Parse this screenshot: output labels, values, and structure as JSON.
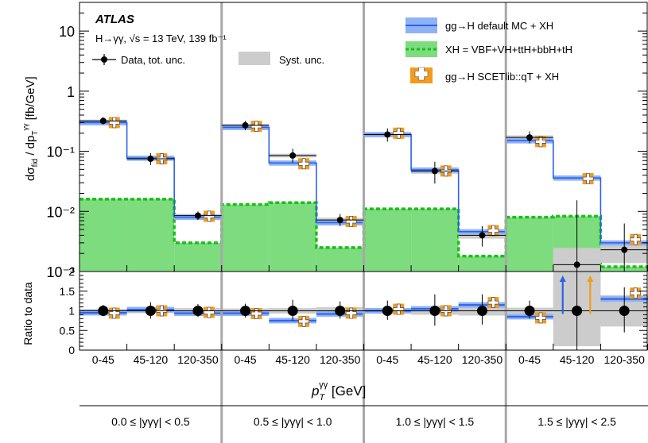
{
  "chart_data": {
    "type": "line",
    "title": "ATLAS",
    "subtitle": "H→γγ, √s = 13 TeV, 139 fb⁻¹",
    "ylabel_main": "dσ_fid / dp_T^γγ [fb/GeV]",
    "ylabel_ratio": "Ratio to data",
    "xlabel": "p_T^γγ [GeV]",
    "yscale_main": "log",
    "ylim_main": [
      0.001,
      30
    ],
    "ylim_ratio": [
      0,
      2
    ],
    "main_yticks": [
      {
        "v": 0.001,
        "t": "10⁻³"
      },
      {
        "v": 0.01,
        "t": "10⁻²"
      },
      {
        "v": 0.1,
        "t": "10⁻¹"
      },
      {
        "v": 1,
        "t": "1"
      },
      {
        "v": 10,
        "t": "10"
      }
    ],
    "ratio_yticks": [
      {
        "v": 0,
        "t": "0"
      },
      {
        "v": 0.5,
        "t": "0.5"
      },
      {
        "v": 1,
        "t": "1"
      },
      {
        "v": 1.5,
        "t": "1.5"
      },
      {
        "v": 2,
        "t": "2"
      }
    ],
    "categories": [
      "0-45",
      "45-120",
      "120-350",
      "0-45",
      "45-120",
      "120-350",
      "0-45",
      "45-120",
      "120-350",
      "0-45",
      "45-120",
      "120-350"
    ],
    "regions": [
      "0.0 ≤ |yγγ| < 0.5",
      "0.5 ≤ |yγγ| < 1.0",
      "1.0 ≤ |yγγ| < 1.5",
      "1.5 ≤ |yγγ| < 2.5"
    ],
    "legend": {
      "data": "Data, tot. unc.",
      "syst": "Syst. unc.",
      "default_mc": "gg→H default MC + XH",
      "xh": "XH = VBF+VH+ttH+bbH+tH",
      "scetlib": "gg→H SCETlib::qT + XH"
    },
    "colors": {
      "default_mc": "#2a62e8",
      "default_band": "#8fb2f5",
      "xh_fill": "#7ddc7d",
      "xh_line": "#19c019",
      "scetlib": "#f59a1c",
      "syst": "#cccccc",
      "separator": "#a8a8a8"
    },
    "series": [
      {
        "name": "Data, tot. unc.",
        "values": [
          0.32,
          0.075,
          0.0085,
          0.27,
          0.085,
          0.0072,
          0.19,
          0.047,
          0.004,
          0.17,
          0.0013,
          0.0023
        ],
        "err_low": [
          0.04,
          0.016,
          0.0013,
          0.045,
          0.02,
          0.0015,
          0.045,
          0.018,
          0.0014,
          0.035,
          0.0012,
          0.0013
        ],
        "err_high": [
          0.05,
          0.018,
          0.0015,
          0.05,
          0.025,
          0.0018,
          0.05,
          0.02,
          0.0017,
          0.045,
          0.014,
          0.004
        ]
      },
      {
        "name": "gg→H default MC + XH",
        "values": [
          0.3,
          0.077,
          0.008,
          0.25,
          0.064,
          0.0065,
          0.19,
          0.049,
          0.0046,
          0.15,
          0.036,
          0.003
        ]
      },
      {
        "name": "XH = VBF+VH+ttH+bbH+tH",
        "values": [
          0.016,
          0.016,
          0.003,
          0.013,
          0.014,
          0.0025,
          0.011,
          0.011,
          0.0018,
          0.008,
          0.0083,
          0.0012
        ]
      },
      {
        "name": "gg→H SCETlib::qT + XH",
        "values": [
          0.3,
          0.075,
          0.0083,
          0.26,
          0.062,
          0.0068,
          0.2,
          0.047,
          0.0048,
          0.145,
          0.035,
          0.0034
        ]
      }
    ],
    "ratio": {
      "data_err_low": [
        0.13,
        0.2,
        0.16,
        0.17,
        0.25,
        0.2,
        0.23,
        0.38,
        0.35,
        0.2,
        1.0,
        0.55
      ],
      "data_err_high": [
        0.15,
        0.22,
        0.17,
        0.18,
        0.28,
        0.24,
        0.26,
        0.42,
        0.42,
        0.26,
        1.0,
        0.6
      ],
      "syst": [
        0.05,
        0.06,
        0.07,
        0.06,
        0.07,
        0.09,
        0.07,
        0.1,
        0.12,
        0.08,
        0.9,
        0.4
      ],
      "default_mc": [
        0.95,
        1.03,
        0.94,
        0.94,
        0.75,
        0.92,
        1.0,
        1.05,
        1.15,
        0.85,
        2.0,
        1.3
      ],
      "scetlib": [
        0.94,
        1.0,
        0.96,
        0.93,
        0.73,
        0.94,
        1.04,
        1.0,
        1.21,
        0.82,
        2.0,
        1.45
      ],
      "offscale_arrows": [
        10
      ]
    }
  }
}
